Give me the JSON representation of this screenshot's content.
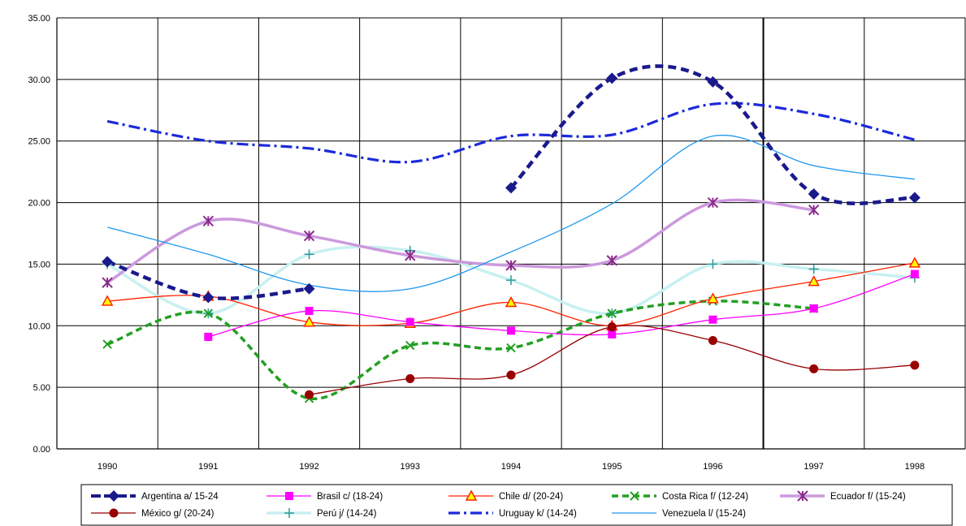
{
  "chart_data": {
    "type": "line",
    "categories": [
      "1990",
      "1991",
      "1992",
      "1993",
      "1994",
      "1995",
      "1996",
      "1997",
      "1998"
    ],
    "y_ticks": [
      "0.00",
      "5.00",
      "10.00",
      "15.00",
      "20.00",
      "25.00",
      "30.00",
      "35.00"
    ],
    "ylim": [
      0,
      35
    ],
    "grid": "vertical lines at category boundaries",
    "legend_position": "bottom",
    "series": [
      {
        "name": "Argentina a/  15-24",
        "values": [
          15.2,
          12.3,
          13.0,
          null,
          21.2,
          30.1,
          29.8,
          20.7,
          20.4
        ],
        "color": "#1a1a8c",
        "dash": "10,6",
        "width": 4.5,
        "marker": "diamond"
      },
      {
        "name": "Brasil c/  (18-24)",
        "values": [
          null,
          9.1,
          11.2,
          10.3,
          9.6,
          9.3,
          10.5,
          11.4,
          14.2
        ],
        "color": "#ff00ff",
        "dash": "",
        "width": 1.3,
        "marker": "square"
      },
      {
        "name": "Chile d/ (20-24)",
        "values": [
          12.0,
          12.4,
          10.3,
          10.2,
          11.9,
          10.0,
          12.2,
          13.6,
          15.1
        ],
        "color": "#ff2200",
        "dash": "",
        "width": 1.3,
        "marker": "triangle"
      },
      {
        "name": "Costa Rica f/ (12-24)",
        "values": [
          8.5,
          11.0,
          4.1,
          8.4,
          8.2,
          11.0,
          12.0,
          11.4,
          null
        ],
        "color": "#22a022",
        "dash": "8,5",
        "width": 3.5,
        "marker": "x"
      },
      {
        "name": "Ecuador f/ (15-24)",
        "values": [
          13.5,
          18.5,
          17.3,
          15.7,
          14.9,
          15.3,
          20.0,
          19.4,
          null
        ],
        "color": "#cc99dd",
        "dash": "",
        "width": 3.5,
        "marker": "star"
      },
      {
        "name": "México g/ (20-24)",
        "values": [
          null,
          null,
          4.4,
          5.7,
          6.0,
          9.9,
          8.8,
          6.5,
          6.8
        ],
        "color": "#990000",
        "dash": "",
        "width": 1.3,
        "marker": "circle"
      },
      {
        "name": "Perú j/ (14-24)",
        "values": [
          15.0,
          11.0,
          15.8,
          16.1,
          13.7,
          11.0,
          15.0,
          14.6,
          13.9
        ],
        "color": "#c8f0f0",
        "dash": "",
        "width": 3.5,
        "marker": "plus"
      },
      {
        "name": "Uruguay k/ (14-24)",
        "values": [
          26.6,
          25.0,
          24.4,
          23.3,
          25.4,
          25.5,
          28.0,
          27.2,
          25.1
        ],
        "color": "#1a2adc",
        "dash": "14,5,3,5",
        "width": 3.2,
        "marker": "none"
      },
      {
        "name": "Venezuela l/ (15-24)",
        "values": [
          18.0,
          15.8,
          13.3,
          13.0,
          16.0,
          19.9,
          25.4,
          23.0,
          21.9
        ],
        "color": "#2299ee",
        "dash": "",
        "width": 1.3,
        "marker": "none"
      }
    ]
  }
}
